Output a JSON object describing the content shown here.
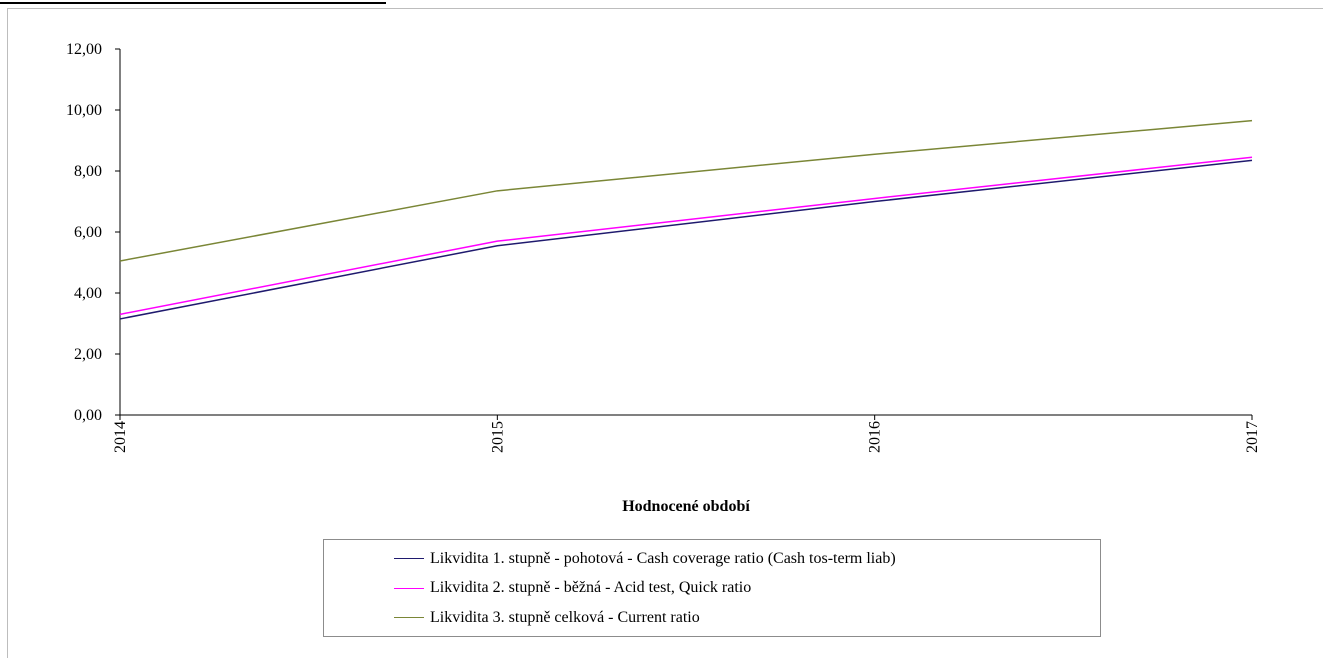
{
  "chart_data": {
    "type": "line",
    "categories": [
      "2014",
      "2015",
      "2016",
      "2017"
    ],
    "xlabel": "Hodnocené období",
    "ylabel": "",
    "ylim": [
      0,
      12
    ],
    "yticks": [
      "0,00",
      "2,00",
      "4,00",
      "6,00",
      "8,00",
      "10,00",
      "12,00"
    ],
    "series": [
      {
        "name": "Likvidita 1. stupně - pohotová - Cash coverage ratio (Cash tos-term liab)",
        "color": "#1f1a6e",
        "values": [
          3.15,
          5.55,
          7.0,
          8.35
        ]
      },
      {
        "name": "Likvidita 2. stupně - běžná - Acid test, Quick ratio",
        "color": "#ff00ff",
        "values": [
          3.3,
          5.7,
          7.1,
          8.45
        ]
      },
      {
        "name": "Likvidita 3. stupně celková - Current ratio",
        "color": "#7a8636",
        "values": [
          5.05,
          7.35,
          8.55,
          9.65
        ]
      }
    ],
    "grid": false,
    "legend_position": "bottom"
  }
}
